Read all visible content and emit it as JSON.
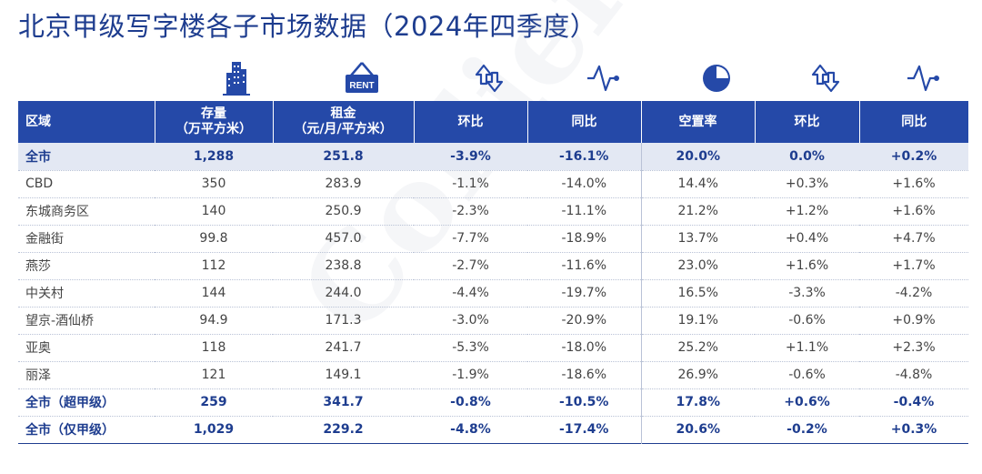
{
  "title": "北京甲级写字楼各子市场数据（2024年四季度）",
  "watermark": "Colliers",
  "icons": {
    "stock": "building-icon",
    "rent": "rent-sign-icon",
    "rent_qoq": "up-down-arrows-icon",
    "rent_yoy": "trend-line-icon",
    "vacancy": "pie-chart-icon",
    "vac_qoq": "up-down-arrows-icon",
    "vac_yoy": "trend-line-icon",
    "rent_sign_text": "RENT"
  },
  "colors": {
    "brand": "#1e3d8f",
    "header_bg": "#2549a8",
    "highlight_row": "#e3e8f3"
  },
  "headers": {
    "region": "区域",
    "stock_l1": "存量",
    "stock_l2": "（万平方米",
    "stock_l3": "）",
    "rent_l1": "租金",
    "rent_l2": "（元/月/平方米）",
    "rent_qoq": "环比",
    "rent_yoy": "同比",
    "vacancy": "空置率",
    "vac_qoq": "环比",
    "vac_yoy": "同比"
  },
  "rows": [
    {
      "region": "全市",
      "stock": "1,288",
      "rent": "251.8",
      "rent_qoq": "-3.9%",
      "rent_yoy": "-16.1%",
      "vacancy": "20.0%",
      "vac_qoq": "0.0%",
      "vac_yoy": "+0.2%"
    },
    {
      "region": "CBD",
      "stock": "350",
      "rent": "283.9",
      "rent_qoq": "-1.1%",
      "rent_yoy": "-14.0%",
      "vacancy": "14.4%",
      "vac_qoq": "+0.3%",
      "vac_yoy": "+1.6%"
    },
    {
      "region": "东城商务区",
      "stock": "140",
      "rent": "250.9",
      "rent_qoq": "-2.3%",
      "rent_yoy": "-11.1%",
      "vacancy": "21.2%",
      "vac_qoq": "+1.2%",
      "vac_yoy": "+1.6%"
    },
    {
      "region": "金融街",
      "stock": "99.8",
      "rent": "457.0",
      "rent_qoq": "-7.7%",
      "rent_yoy": "-18.9%",
      "vacancy": "13.7%",
      "vac_qoq": "+0.4%",
      "vac_yoy": "+4.7%"
    },
    {
      "region": "燕莎",
      "stock": "112",
      "rent": "238.8",
      "rent_qoq": "-2.7%",
      "rent_yoy": "-11.6%",
      "vacancy": "23.0%",
      "vac_qoq": "+1.6%",
      "vac_yoy": "+1.7%"
    },
    {
      "region": "中关村",
      "stock": "144",
      "rent": "244.0",
      "rent_qoq": "-4.4%",
      "rent_yoy": "-19.7%",
      "vacancy": "16.5%",
      "vac_qoq": "-3.3%",
      "vac_yoy": "-4.2%"
    },
    {
      "region": "望京-酒仙桥",
      "stock": "94.9",
      "rent": "171.3",
      "rent_qoq": "-3.0%",
      "rent_yoy": "-20.9%",
      "vacancy": "19.1%",
      "vac_qoq": "-0.6%",
      "vac_yoy": "+0.9%"
    },
    {
      "region": "亚奥",
      "stock": "118",
      "rent": "241.7",
      "rent_qoq": "-5.3%",
      "rent_yoy": "-18.0%",
      "vacancy": "25.2%",
      "vac_qoq": "+1.1%",
      "vac_yoy": "+2.3%"
    },
    {
      "region": "丽泽",
      "stock": "121",
      "rent": "149.1",
      "rent_qoq": "-1.9%",
      "rent_yoy": "-18.6%",
      "vacancy": "26.9%",
      "vac_qoq": "-0.6%",
      "vac_yoy": "-4.8%"
    },
    {
      "region": "全市（超甲级）",
      "stock": "259",
      "rent": "341.7",
      "rent_qoq": "-0.8%",
      "rent_yoy": "-10.5%",
      "vacancy": "17.8%",
      "vac_qoq": "+0.6%",
      "vac_yoy": "-0.4%"
    },
    {
      "region": "全市（仅甲级）",
      "stock": "1,029",
      "rent": "229.2",
      "rent_qoq": "-4.8%",
      "rent_yoy": "-17.4%",
      "vacancy": "20.6%",
      "vac_qoq": "-0.2%",
      "vac_yoy": "+0.3%"
    }
  ]
}
